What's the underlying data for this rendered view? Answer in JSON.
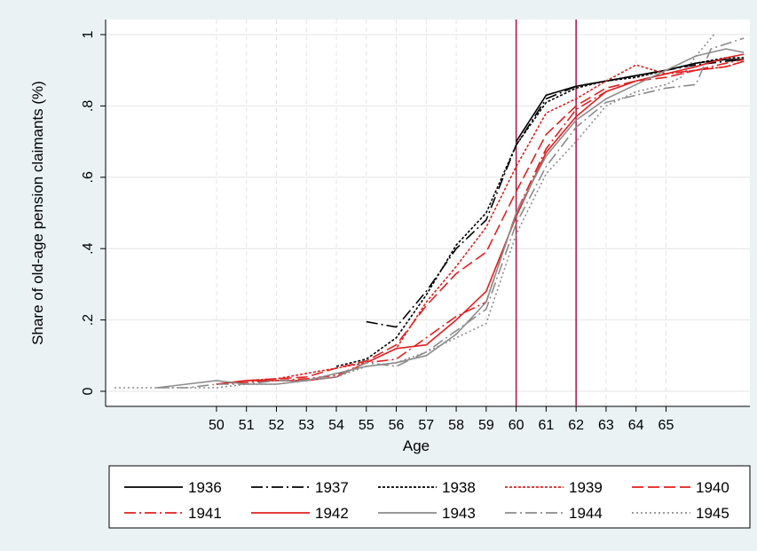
{
  "chart_data": {
    "type": "line",
    "title": "",
    "xlabel": "Age",
    "ylabel": "Share of old-age pension claimants (%)",
    "xlim": [
      46.3,
      67.8
    ],
    "ylim": [
      0,
      1
    ],
    "x_ticks": [
      50,
      51,
      52,
      53,
      54,
      55,
      56,
      57,
      58,
      59,
      60,
      61,
      62,
      63,
      64,
      65
    ],
    "y_ticks": [
      {
        "value": 0,
        "label": "0"
      },
      {
        "value": 0.2,
        "label": ".2"
      },
      {
        "value": 0.4,
        "label": ".4"
      },
      {
        "value": 0.6,
        "label": ".6"
      },
      {
        "value": 0.8,
        "label": ".8"
      },
      {
        "value": 1,
        "label": "1"
      }
    ],
    "reference_lines_x": [
      60,
      62
    ],
    "reference_line_color": "#a8123e",
    "grid": true,
    "legend_position": "bottom",
    "series": [
      {
        "name": "1936",
        "color": "#000000",
        "dash": "solid",
        "x": [
          60,
          61,
          62,
          63,
          64,
          65,
          66,
          67,
          67.6
        ],
        "y": [
          0.7,
          0.83,
          0.855,
          0.87,
          0.885,
          0.9,
          0.92,
          0.93,
          0.93
        ]
      },
      {
        "name": "1937",
        "color": "#000000",
        "dash": "longdash-dot",
        "x": [
          55,
          56,
          57,
          58,
          59,
          60,
          61,
          62,
          63,
          64,
          65,
          66,
          67,
          67.6
        ],
        "y": [
          0.195,
          0.18,
          0.28,
          0.4,
          0.48,
          0.69,
          0.82,
          0.855,
          0.87,
          0.885,
          0.9,
          0.915,
          0.925,
          0.93
        ]
      },
      {
        "name": "1938",
        "color": "#000000",
        "dash": "shortdash",
        "x": [
          54,
          55,
          56,
          57,
          58,
          59,
          60,
          61,
          62,
          63,
          64,
          65,
          66,
          67,
          67.6
        ],
        "y": [
          0.07,
          0.09,
          0.15,
          0.27,
          0.41,
          0.5,
          0.69,
          0.81,
          0.85,
          0.87,
          0.88,
          0.9,
          0.92,
          0.935,
          0.935
        ]
      },
      {
        "name": "1939",
        "color": "#e02020",
        "dash": "shortdash",
        "x": [
          50,
          51,
          52,
          53,
          54,
          55,
          56,
          57,
          58,
          59,
          60,
          61,
          62,
          63,
          64,
          65,
          66,
          67,
          67.6
        ],
        "y": [
          0.02,
          0.03,
          0.035,
          0.05,
          0.065,
          0.08,
          0.12,
          0.25,
          0.35,
          0.46,
          0.63,
          0.78,
          0.82,
          0.87,
          0.915,
          0.89,
          0.9,
          0.91,
          0.925
        ]
      },
      {
        "name": "1940",
        "color": "#e02020",
        "dash": "longdash",
        "x": [
          50,
          51,
          52,
          53,
          54,
          55,
          56,
          57,
          58,
          59,
          60,
          61,
          62,
          63,
          64,
          65,
          66,
          67,
          67.6
        ],
        "y": [
          0.02,
          0.03,
          0.035,
          0.04,
          0.065,
          0.085,
          0.13,
          0.24,
          0.33,
          0.39,
          0.56,
          0.72,
          0.8,
          0.85,
          0.87,
          0.88,
          0.9,
          0.91,
          0.925
        ]
      },
      {
        "name": "1941",
        "color": "#e02020",
        "dash": "longdash-dot",
        "x": [
          50,
          51,
          52,
          53,
          54,
          55,
          56,
          57,
          58,
          59,
          60,
          61,
          62,
          63,
          64,
          65,
          66,
          67,
          67.6
        ],
        "y": [
          0.02,
          0.025,
          0.03,
          0.035,
          0.045,
          0.08,
          0.09,
          0.15,
          0.21,
          0.25,
          0.5,
          0.68,
          0.79,
          0.84,
          0.87,
          0.89,
          0.9,
          0.92,
          0.93
        ]
      },
      {
        "name": "1942",
        "color": "#e02020",
        "dash": "solid",
        "x": [
          50,
          51,
          52,
          53,
          54,
          55,
          56,
          57,
          58,
          59,
          60,
          61,
          62,
          63,
          64,
          65,
          66,
          67,
          67.6
        ],
        "y": [
          0.02,
          0.03,
          0.03,
          0.03,
          0.04,
          0.08,
          0.12,
          0.13,
          0.2,
          0.28,
          0.49,
          0.67,
          0.77,
          0.84,
          0.87,
          0.89,
          0.91,
          0.935,
          0.945
        ]
      },
      {
        "name": "1943",
        "color": "#8c8c8c",
        "dash": "solid",
        "x": [
          48,
          49,
          50,
          51,
          52,
          53,
          54,
          55,
          56,
          57,
          58,
          59,
          60,
          61,
          62,
          63,
          64,
          65,
          66,
          67,
          67.6
        ],
        "y": [
          0.01,
          0.02,
          0.03,
          0.02,
          0.02,
          0.03,
          0.05,
          0.07,
          0.08,
          0.1,
          0.16,
          0.25,
          0.5,
          0.66,
          0.76,
          0.82,
          0.86,
          0.9,
          0.94,
          0.96,
          0.95
        ]
      },
      {
        "name": "1944",
        "color": "#8c8c8c",
        "dash": "longdash-dot",
        "x": [
          48,
          49,
          50,
          51,
          52,
          53,
          54,
          55,
          56,
          57,
          58,
          59,
          60,
          61,
          62,
          63,
          64,
          65,
          66,
          66.5,
          67.6
        ],
        "y": [
          0.01,
          0.01,
          0.02,
          0.02,
          0.03,
          0.03,
          0.04,
          0.08,
          0.07,
          0.11,
          0.17,
          0.23,
          0.47,
          0.63,
          0.74,
          0.81,
          0.83,
          0.85,
          0.86,
          0.96,
          0.99
        ]
      },
      {
        "name": "1945",
        "color": "#8c8c8c",
        "dash": "dot",
        "x": [
          46.6,
          47,
          48,
          49,
          50,
          51,
          52,
          53,
          54,
          55,
          56,
          57,
          58,
          59,
          60,
          61,
          62,
          63,
          64,
          65,
          65.5,
          66,
          66.6
        ],
        "y": [
          0.01,
          0.01,
          0.01,
          0.01,
          0.01,
          0.02,
          0.02,
          0.03,
          0.04,
          0.07,
          0.08,
          0.11,
          0.15,
          0.19,
          0.44,
          0.61,
          0.7,
          0.8,
          0.84,
          0.86,
          0.88,
          0.94,
          1.0
        ]
      }
    ]
  }
}
